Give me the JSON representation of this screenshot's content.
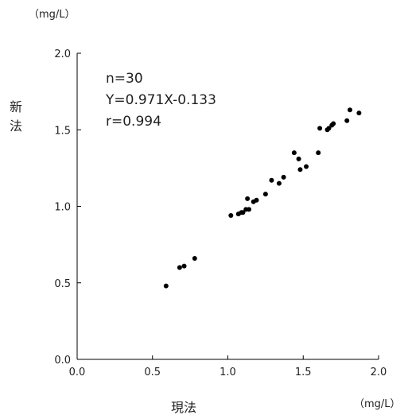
{
  "chart_data": {
    "type": "scatter",
    "title": "",
    "xlabel": "現法",
    "ylabel": [
      "新",
      "法"
    ],
    "x_unit": "（mg/L）",
    "y_unit": "（mg/L）",
    "xlim": [
      0.0,
      2.0
    ],
    "ylim": [
      0.0,
      2.0
    ],
    "x_ticks": [
      "0.0",
      "0.5",
      "1.0",
      "1.5",
      "2.0"
    ],
    "y_ticks": [
      "0.0",
      "0.5",
      "1.0",
      "1.5",
      "2.0"
    ],
    "grid": false,
    "annotations": [
      "n=30",
      "Y=0.971X-0.133",
      "r=0.994"
    ],
    "colors": {
      "points": "#000000",
      "axis": "#000000",
      "text": "#222222"
    },
    "points": [
      {
        "x": 0.59,
        "y": 0.48
      },
      {
        "x": 0.68,
        "y": 0.6
      },
      {
        "x": 0.71,
        "y": 0.61
      },
      {
        "x": 0.78,
        "y": 0.66
      },
      {
        "x": 1.02,
        "y": 0.94
      },
      {
        "x": 1.07,
        "y": 0.95
      },
      {
        "x": 1.1,
        "y": 0.96
      },
      {
        "x": 1.12,
        "y": 0.98
      },
      {
        "x": 1.13,
        "y": 1.05
      },
      {
        "x": 1.14,
        "y": 0.98
      },
      {
        "x": 1.17,
        "y": 1.03
      },
      {
        "x": 1.19,
        "y": 1.04
      },
      {
        "x": 1.25,
        "y": 1.08
      },
      {
        "x": 1.29,
        "y": 1.17
      },
      {
        "x": 1.34,
        "y": 1.15
      },
      {
        "x": 1.37,
        "y": 1.19
      },
      {
        "x": 1.44,
        "y": 1.35
      },
      {
        "x": 1.47,
        "y": 1.31
      },
      {
        "x": 1.48,
        "y": 1.24
      },
      {
        "x": 1.52,
        "y": 1.26
      },
      {
        "x": 1.6,
        "y": 1.35
      },
      {
        "x": 1.61,
        "y": 1.51
      },
      {
        "x": 1.67,
        "y": 1.51
      },
      {
        "x": 1.69,
        "y": 1.53
      },
      {
        "x": 1.7,
        "y": 1.54
      },
      {
        "x": 1.79,
        "y": 1.56
      },
      {
        "x": 1.81,
        "y": 1.63
      },
      {
        "x": 1.87,
        "y": 1.61
      },
      {
        "x": 1.09,
        "y": 0.96
      },
      {
        "x": 1.66,
        "y": 1.5
      }
    ]
  }
}
